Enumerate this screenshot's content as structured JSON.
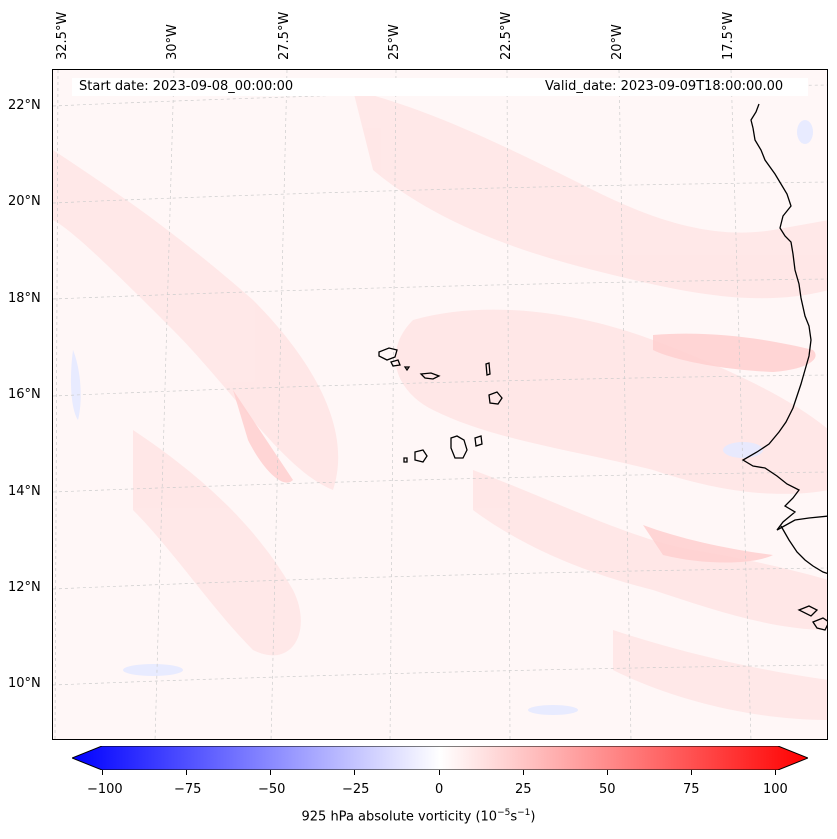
{
  "map": {
    "lon_labels": [
      "32.5°W",
      "30°W",
      "27.5°W",
      "25°W",
      "22.5°W",
      "20°W",
      "17.5°W"
    ],
    "lat_labels": [
      "22°N",
      "20°N",
      "18°N",
      "16°N",
      "14°N",
      "12°N",
      "10°N"
    ],
    "start_date": "Start date: 2023-09-08_00:00:00",
    "valid_date": "Valid_date: 2023-09-09T18:00:00.00",
    "variable": "925 hPa absolute vorticity"
  },
  "colorbar": {
    "ticks": [
      "−100",
      "−75",
      "−50",
      "−25",
      "0",
      "25",
      "50",
      "75",
      "100"
    ],
    "label_prefix": "925 hPa absolute vorticity (10",
    "label_exp1": "−5",
    "label_mid": "s",
    "label_exp2": "−1",
    "label_suffix": ")",
    "min_color": "#0000ff",
    "mid_color": "#ffffff",
    "max_color": "#ff0000"
  }
}
